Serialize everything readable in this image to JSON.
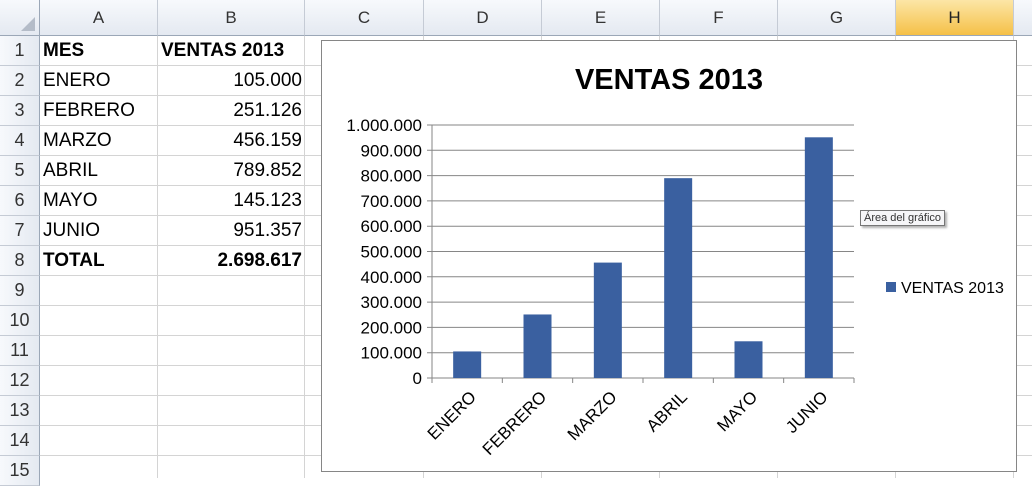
{
  "columns": [
    "A",
    "B",
    "C",
    "D",
    "E",
    "F",
    "G",
    "H"
  ],
  "selected_column": "H",
  "rows": [
    "1",
    "2",
    "3",
    "4",
    "5",
    "6",
    "7",
    "8",
    "9",
    "10",
    "11",
    "12",
    "13",
    "14",
    "15"
  ],
  "cells": {
    "header": {
      "mes": "MES",
      "ventas": "VENTAS 2013"
    },
    "data": [
      {
        "mes": "ENERO",
        "ventas": "105.000"
      },
      {
        "mes": "FEBRERO",
        "ventas": "251.126"
      },
      {
        "mes": "MARZO",
        "ventas": "456.159"
      },
      {
        "mes": "ABRIL",
        "ventas": "789.852"
      },
      {
        "mes": "MAYO",
        "ventas": "145.123"
      },
      {
        "mes": "JUNIO",
        "ventas": "951.357"
      }
    ],
    "total": {
      "mes": "TOTAL",
      "ventas": "2.698.617"
    }
  },
  "tooltip": "Área del gráfico",
  "chart_data": {
    "type": "bar",
    "title": "VENTAS 2013",
    "categories": [
      "ENERO",
      "FEBRERO",
      "MARZO",
      "ABRIL",
      "MAYO",
      "JUNIO"
    ],
    "series": [
      {
        "name": "VENTAS 2013",
        "values": [
          105000,
          251126,
          456159,
          789852,
          145123,
          951357
        ],
        "color": "#3a60a0"
      }
    ],
    "ylim": [
      0,
      1000000
    ],
    "yticks": [
      "0",
      "100.000",
      "200.000",
      "300.000",
      "400.000",
      "500.000",
      "600.000",
      "700.000",
      "800.000",
      "900.000",
      "1.000.000"
    ],
    "grid": true,
    "legend": "right"
  }
}
